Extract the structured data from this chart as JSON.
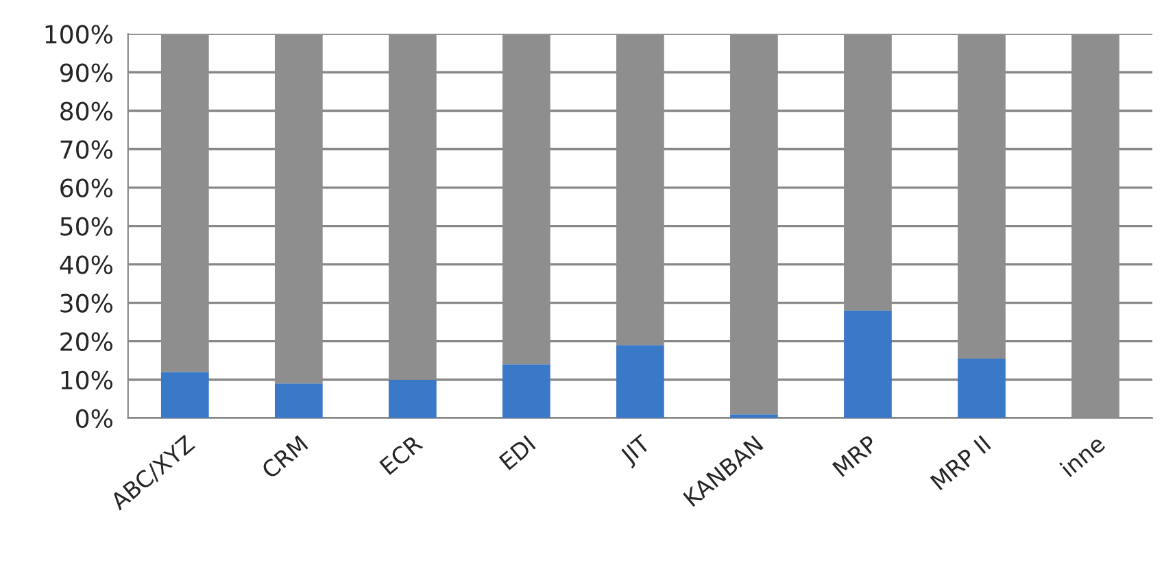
{
  "chart_data": {
    "type": "bar",
    "stacked": true,
    "categories": [
      "ABC/XYZ",
      "CRM",
      "ECR",
      "EDI",
      "JIT",
      "KANBAN",
      "MRP",
      "MRP II",
      "inne"
    ],
    "series": [
      {
        "color": "#3a78c8",
        "values": [
          12,
          9,
          10,
          14,
          19,
          1,
          28,
          15.5,
          0
        ]
      },
      {
        "color": "#8e8e8e",
        "values": [
          88,
          91,
          90,
          86,
          81,
          99,
          72,
          84.5,
          100
        ]
      }
    ],
    "ylim": [
      0,
      100
    ],
    "yticks": [
      {
        "value": 0,
        "label": "0%"
      },
      {
        "value": 10,
        "label": "10%"
      },
      {
        "value": 20,
        "label": "20%"
      },
      {
        "value": 30,
        "label": "30%"
      },
      {
        "value": 40,
        "label": "40%"
      },
      {
        "value": 50,
        "label": "50%"
      },
      {
        "value": 60,
        "label": "60%"
      },
      {
        "value": 70,
        "label": "70%"
      },
      {
        "value": 80,
        "label": "80%"
      },
      {
        "value": 90,
        "label": "90%"
      },
      {
        "value": 100,
        "label": "100%"
      }
    ],
    "grid": "y"
  }
}
